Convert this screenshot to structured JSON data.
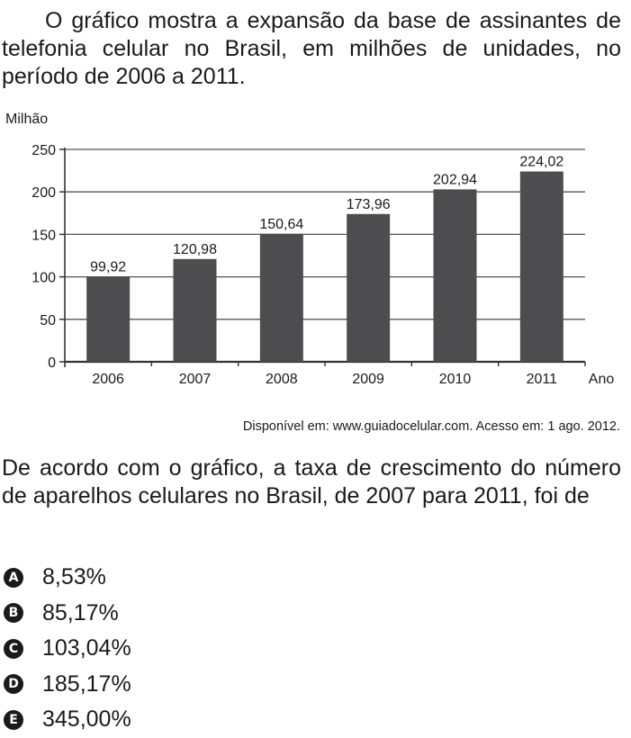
{
  "intro_text": "O gráfico mostra a expansão da base de assinantes de telefonia celular no Brasil, em milhões de unidades, no período de 2006 a 2011.",
  "chart_data": {
    "type": "bar",
    "ylabel": "Milhão",
    "xlabel": "Ano",
    "categories": [
      "2006",
      "2007",
      "2008",
      "2009",
      "2010",
      "2011"
    ],
    "values": [
      99.92,
      120.98,
      150.64,
      173.96,
      202.94,
      224.02
    ],
    "value_labels": [
      "99,92",
      "120,98",
      "150,64",
      "173,96",
      "202,94",
      "224,02"
    ],
    "yticks": [
      0,
      50,
      100,
      150,
      200,
      250
    ],
    "ylim": [
      0,
      250
    ],
    "grid": true,
    "bar_color": "#4d4d4f"
  },
  "source_text": "Disponível em: www.guiadocelular.com. Acesso em: 1 ago. 2012.",
  "question_text": "De acordo com o gráfico, a taxa de crescimento do número de aparelhos celulares no Brasil, de 2007 para 2011, foi de",
  "options": [
    {
      "letter": "A",
      "text": "8,53%"
    },
    {
      "letter": "B",
      "text": "85,17%"
    },
    {
      "letter": "C",
      "text": "103,04%"
    },
    {
      "letter": "D",
      "text": "185,17%"
    },
    {
      "letter": "E",
      "text": "345,00%"
    }
  ]
}
